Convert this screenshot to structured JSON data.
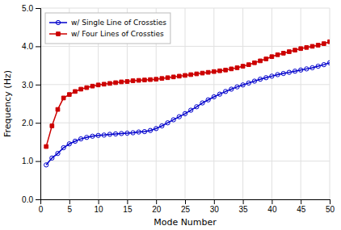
{
  "chart_data": {
    "type": "line",
    "xlabel": "Mode Number",
    "ylabel": "Frequency (Hz)",
    "x": [
      1,
      2,
      3,
      4,
      5,
      6,
      7,
      8,
      9,
      10,
      11,
      12,
      13,
      14,
      15,
      16,
      17,
      18,
      19,
      20,
      21,
      22,
      23,
      24,
      25,
      26,
      27,
      28,
      29,
      30,
      31,
      32,
      33,
      34,
      35,
      36,
      37,
      38,
      39,
      40,
      41,
      42,
      43,
      44,
      45,
      46,
      47,
      48,
      49,
      50
    ],
    "series": [
      {
        "name": "w/ Single Line of Crossties",
        "color": "#0000CC",
        "marker": "circle",
        "values": [
          0.9,
          1.08,
          1.2,
          1.35,
          1.45,
          1.52,
          1.58,
          1.62,
          1.65,
          1.67,
          1.68,
          1.7,
          1.71,
          1.72,
          1.73,
          1.74,
          1.76,
          1.77,
          1.8,
          1.85,
          1.92,
          2.0,
          2.08,
          2.16,
          2.24,
          2.33,
          2.42,
          2.52,
          2.6,
          2.68,
          2.75,
          2.82,
          2.88,
          2.94,
          2.99,
          3.04,
          3.09,
          3.14,
          3.18,
          3.22,
          3.26,
          3.29,
          3.32,
          3.35,
          3.38,
          3.41,
          3.44,
          3.48,
          3.52,
          3.57
        ]
      },
      {
        "name": "w/ Four Lines of Crossties",
        "color": "#CC0000",
        "marker": "square",
        "values": [
          1.38,
          1.92,
          2.35,
          2.65,
          2.74,
          2.82,
          2.88,
          2.92,
          2.96,
          2.99,
          3.01,
          3.03,
          3.05,
          3.07,
          3.08,
          3.1,
          3.11,
          3.12,
          3.13,
          3.14,
          3.16,
          3.18,
          3.2,
          3.22,
          3.24,
          3.26,
          3.28,
          3.3,
          3.32,
          3.34,
          3.36,
          3.38,
          3.41,
          3.44,
          3.48,
          3.52,
          3.57,
          3.62,
          3.67,
          3.73,
          3.78,
          3.82,
          3.86,
          3.9,
          3.94,
          3.97,
          4.0,
          4.03,
          4.07,
          4.12
        ]
      }
    ],
    "xlim": [
      0,
      50
    ],
    "ylim": [
      0.0,
      5.0
    ],
    "xticks": [
      0,
      5,
      10,
      15,
      20,
      25,
      30,
      35,
      40,
      45,
      50
    ],
    "yticks": [
      {
        "value": 0.0,
        "label": "0.0"
      },
      {
        "value": 1.0,
        "label": "1.0"
      },
      {
        "value": 2.0,
        "label": "2.0"
      },
      {
        "value": 3.0,
        "label": "3.0"
      },
      {
        "value": 4.0,
        "label": "4.0"
      },
      {
        "value": 5.0,
        "label": "5.0"
      }
    ],
    "grid": true,
    "legend": "upper-left"
  }
}
